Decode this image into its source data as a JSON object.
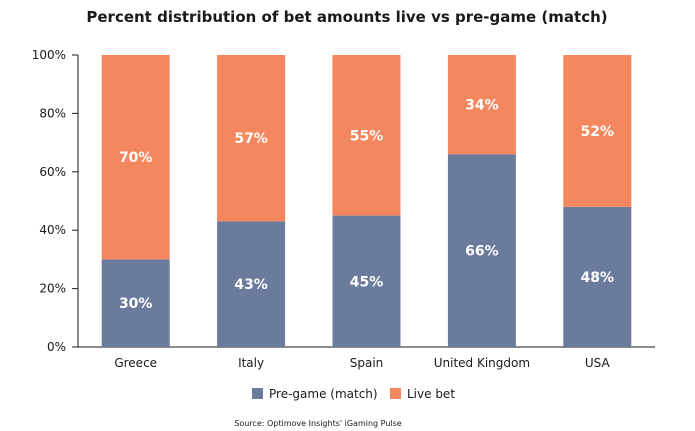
{
  "chart_data": {
    "type": "bar",
    "stacked": true,
    "title": "Percent distribution of bet amounts live vs pre-game (match)",
    "categories": [
      "Greece",
      "Italy",
      "Spain",
      "United Kingdom",
      "USA"
    ],
    "series": [
      {
        "name": "Pre-game (match)",
        "color": "#6b7b9c",
        "values": [
          30,
          43,
          45,
          66,
          48
        ],
        "labels": [
          "30%",
          "43%",
          "45%",
          "66%",
          "48%"
        ]
      },
      {
        "name": "Live bet",
        "color": "#f5875f",
        "values": [
          70,
          57,
          55,
          34,
          52
        ],
        "labels": [
          "70%",
          "57%",
          "55%",
          "34%",
          "52%"
        ]
      }
    ],
    "ylim": [
      0,
      100
    ],
    "yticks": [
      0,
      20,
      40,
      60,
      80,
      100
    ],
    "ytick_labels": [
      "0%",
      "20%",
      "40%",
      "60%",
      "80%",
      "100%"
    ],
    "xlabel": "",
    "ylabel": "",
    "grid": false,
    "legend_position": "bottom"
  },
  "source": "Source: Optimove Insights' iGaming Pulse"
}
